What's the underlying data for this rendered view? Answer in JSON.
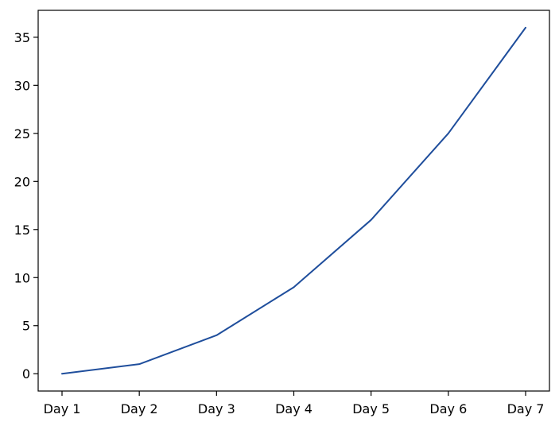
{
  "chart_data": {
    "type": "line",
    "title": "",
    "xlabel": "",
    "ylabel": "",
    "categories": [
      "Day 1",
      "Day 2",
      "Day 3",
      "Day 4",
      "Day 5",
      "Day 6",
      "Day 7"
    ],
    "series": [
      {
        "values": [
          0,
          1,
          4,
          9,
          16,
          25,
          36
        ],
        "color": "#1f4e9c"
      }
    ],
    "yticks": [
      0,
      5,
      10,
      15,
      20,
      25,
      30,
      35
    ],
    "ylim": [
      -1.8,
      37.8
    ],
    "grid": false,
    "legend": "none"
  }
}
